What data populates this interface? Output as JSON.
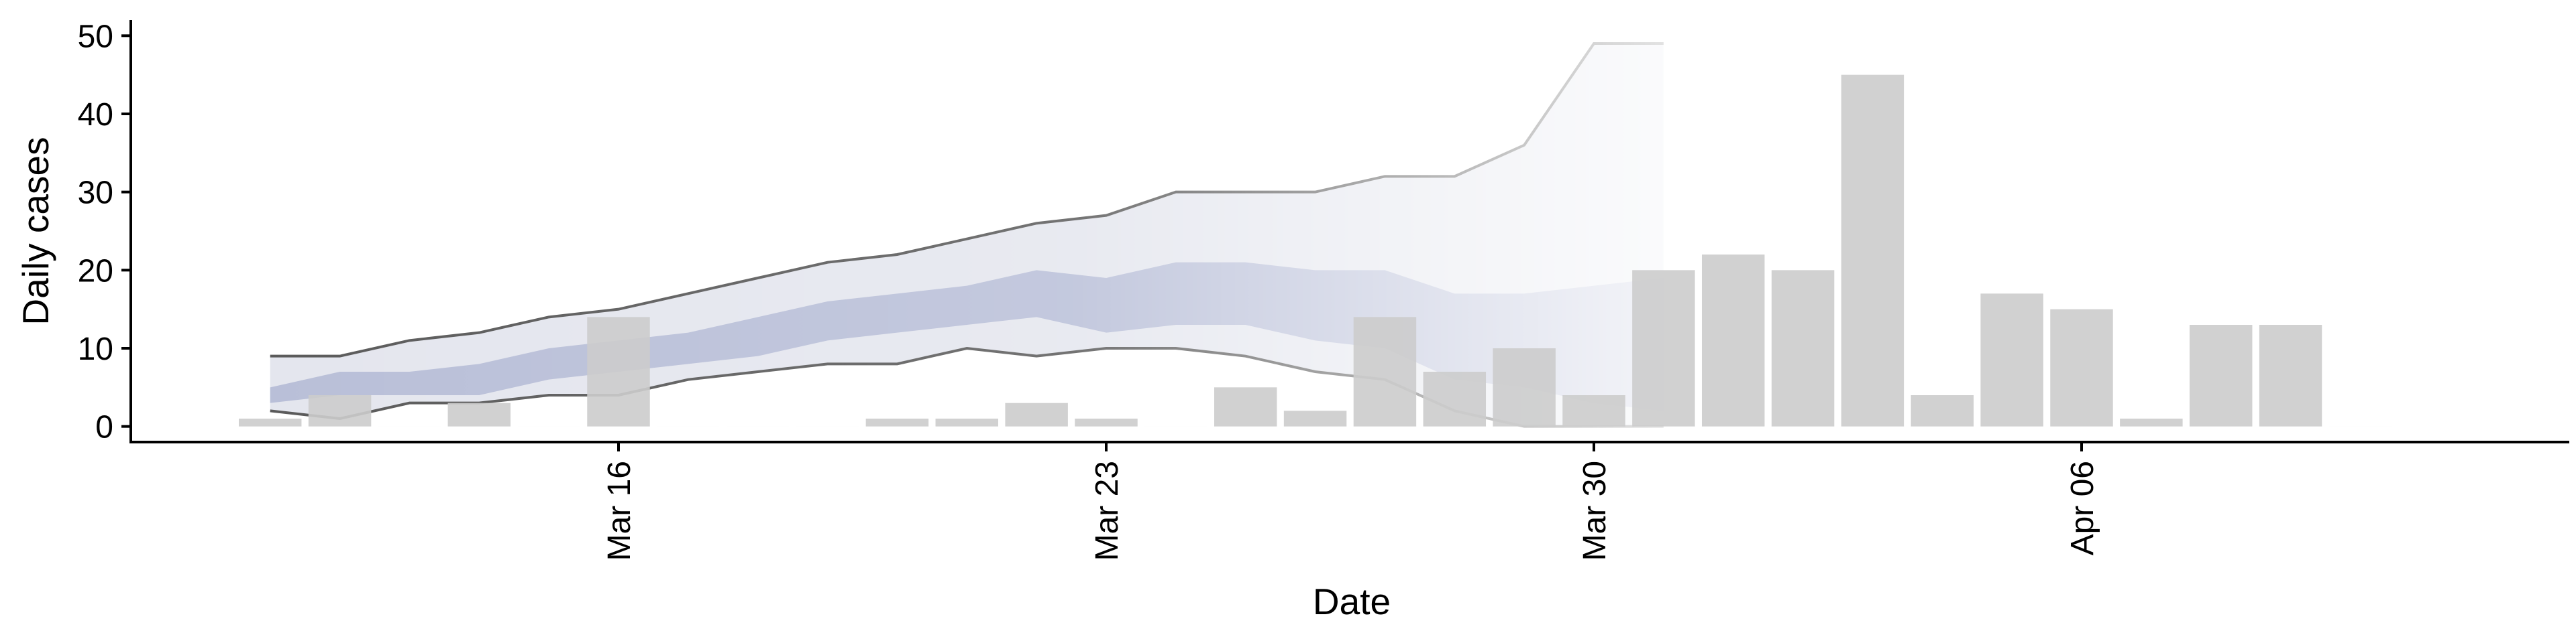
{
  "chart_data": {
    "type": "bar",
    "title": "",
    "xlabel": "Date",
    "ylabel": "Daily cases",
    "ylim": [
      -2,
      52
    ],
    "y_ticks": [
      0,
      10,
      20,
      30,
      40,
      50
    ],
    "x_range": [
      "2020-03-09",
      "2020-04-13"
    ],
    "x_ticks": [
      {
        "date": "2020-03-16",
        "label": "Mar 16"
      },
      {
        "date": "2020-03-23",
        "label": "Mar 23"
      },
      {
        "date": "2020-03-30",
        "label": "Mar 30"
      },
      {
        "date": "2020-04-06",
        "label": "Apr 06"
      }
    ],
    "x_tick_rotation": "vertical",
    "grid": false,
    "bars": {
      "color": "#cccccc",
      "dates": [
        "2020-03-11",
        "2020-03-12",
        "2020-03-13",
        "2020-03-14",
        "2020-03-15",
        "2020-03-16",
        "2020-03-17",
        "2020-03-18",
        "2020-03-19",
        "2020-03-20",
        "2020-03-21",
        "2020-03-22",
        "2020-03-23",
        "2020-03-24",
        "2020-03-25",
        "2020-03-26",
        "2020-03-27",
        "2020-03-28",
        "2020-03-29",
        "2020-03-30",
        "2020-03-31",
        "2020-04-01",
        "2020-04-02",
        "2020-04-03",
        "2020-04-04",
        "2020-04-05",
        "2020-04-06",
        "2020-04-07",
        "2020-04-08",
        "2020-04-09",
        "2020-04-10"
      ],
      "values": [
        1,
        4,
        0,
        3,
        0,
        14,
        0,
        0,
        0,
        1,
        1,
        3,
        1,
        0,
        5,
        2,
        14,
        7,
        10,
        4,
        20,
        22,
        20,
        45,
        4,
        17,
        15,
        1,
        13,
        13,
        0
      ]
    },
    "projection": {
      "dates": [
        "2020-03-11",
        "2020-03-12",
        "2020-03-13",
        "2020-03-14",
        "2020-03-15",
        "2020-03-16",
        "2020-03-17",
        "2020-03-18",
        "2020-03-19",
        "2020-03-20",
        "2020-03-21",
        "2020-03-22",
        "2020-03-23",
        "2020-03-24",
        "2020-03-25",
        "2020-03-26",
        "2020-03-27",
        "2020-03-28",
        "2020-03-29",
        "2020-03-30",
        "2020-03-31"
      ],
      "outer_upper": [
        9,
        9,
        11,
        12,
        14,
        15,
        17,
        19,
        21,
        22,
        24,
        26,
        27,
        30,
        30,
        30,
        32,
        32,
        36,
        49,
        49
      ],
      "outer_lower": [
        2,
        1,
        3,
        3,
        4,
        4,
        6,
        7,
        8,
        8,
        10,
        9,
        10,
        10,
        9,
        7,
        6,
        2,
        0,
        0,
        0
      ],
      "inner_upper": [
        5,
        7,
        7,
        8,
        10,
        11,
        12,
        14,
        16,
        17,
        18,
        20,
        19,
        21,
        21,
        20,
        20,
        17,
        17,
        18,
        19
      ],
      "inner_lower": [
        3,
        4,
        4,
        4,
        6,
        7,
        8,
        9,
        11,
        12,
        13,
        14,
        12,
        13,
        13,
        11,
        10,
        6,
        5,
        3,
        2
      ],
      "outer_color": "#e4e6ee",
      "inner_color": "#b9bfd8",
      "line_color": "#5a5a5a",
      "fade": "right"
    }
  }
}
